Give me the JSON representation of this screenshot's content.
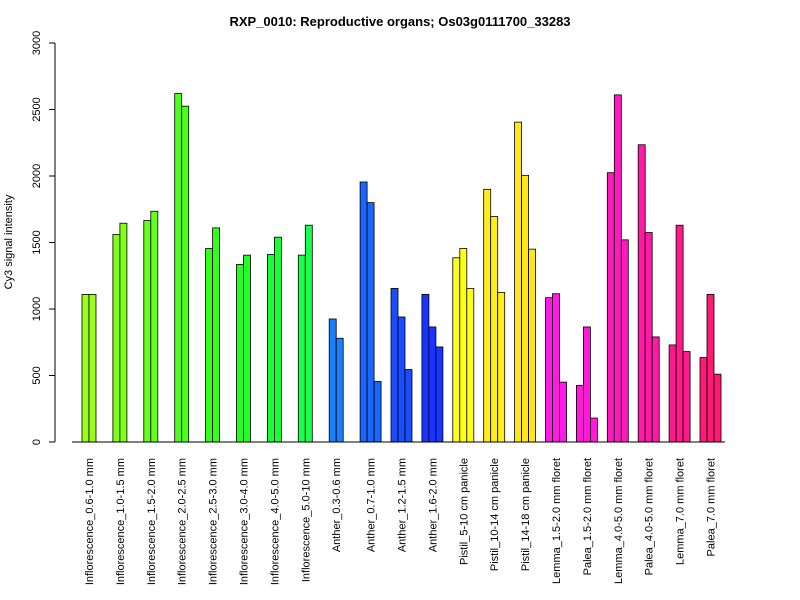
{
  "chart_data": {
    "type": "bar",
    "title": "RXP_0010: Reproductive organs; Os03g0111700_33283",
    "xlabel": "",
    "ylabel": "Cy3 signal intensity",
    "ylim": [
      0,
      3000
    ],
    "yticks": [
      0,
      500,
      1000,
      1500,
      2000,
      2500,
      3000
    ],
    "grid": false,
    "legend": "none",
    "categories": [
      "Inflorescence_0.6-1.0 mm",
      "Inflorescence_1.0-1.5 mm",
      "Inflorescence_1.5-2.0 mm",
      "Inflorescence_2.0-2.5 mm",
      "Inflorescence_2.5-3.0 mm",
      "Inflorescence_3.0-4.0 mm",
      "Inflorescence_4.0-5.0 mm",
      "Inflorescence_5.0-10 mm",
      "Anther_0.3-0.6 mm",
      "Anther_0.7-1.0 mm",
      "Anther_1.2-1.5 mm",
      "Anther_1.6-2.0 mm",
      "Pistil_5-10 cm panicle",
      "Pistil_10-14 cm panicle",
      "Pistil_14-18 cm panicle",
      "Lemma_1.5-2.0 mm floret",
      "Palea_1.5-2.0 mm floret",
      "Lemma_4.0-5.0 mm floret",
      "Palea_4.0-5.0 mm floret",
      "Lemma_7.0 mm floret",
      "Palea_7.0 mm floret"
    ],
    "groups": [
      {
        "color": "#99ff1a",
        "values": [
          1110,
          1110
        ]
      },
      {
        "color": "#80ff1a",
        "values": [
          1560,
          1645
        ]
      },
      {
        "color": "#66ff1a",
        "values": [
          1665,
          1735
        ]
      },
      {
        "color": "#4dff1a",
        "values": [
          2620,
          2525
        ]
      },
      {
        "color": "#33ff1a",
        "values": [
          1455,
          1610
        ]
      },
      {
        "color": "#22ff22",
        "values": [
          1335,
          1405
        ]
      },
      {
        "color": "#1aff33",
        "values": [
          1410,
          1540
        ]
      },
      {
        "color": "#1aff4d",
        "values": [
          1405,
          1630
        ]
      },
      {
        "color": "#1a80ff",
        "values": [
          925,
          780
        ]
      },
      {
        "color": "#1a66ff",
        "values": [
          1955,
          1800,
          455
        ]
      },
      {
        "color": "#1a4dff",
        "values": [
          1155,
          940,
          545
        ]
      },
      {
        "color": "#1a33ff",
        "values": [
          1110,
          865,
          715
        ]
      },
      {
        "color": "#ffff1a",
        "values": [
          1385,
          1455,
          1155
        ]
      },
      {
        "color": "#ffee1a",
        "values": [
          1900,
          1695,
          1125
        ]
      },
      {
        "color": "#ffe61a",
        "values": [
          2405,
          2005,
          1450
        ]
      },
      {
        "color": "#ff1ae6",
        "values": [
          1085,
          1115,
          450
        ]
      },
      {
        "color": "#ff1ad9",
        "values": [
          425,
          865,
          180
        ]
      },
      {
        "color": "#ff1ac0",
        "values": [
          2025,
          2610,
          1520
        ]
      },
      {
        "color": "#ff1aa6",
        "values": [
          2235,
          1575,
          790
        ]
      },
      {
        "color": "#ff1a8c",
        "values": [
          730,
          1630,
          680
        ]
      },
      {
        "color": "#ff1a73",
        "values": [
          635,
          1110,
          510
        ]
      }
    ]
  }
}
